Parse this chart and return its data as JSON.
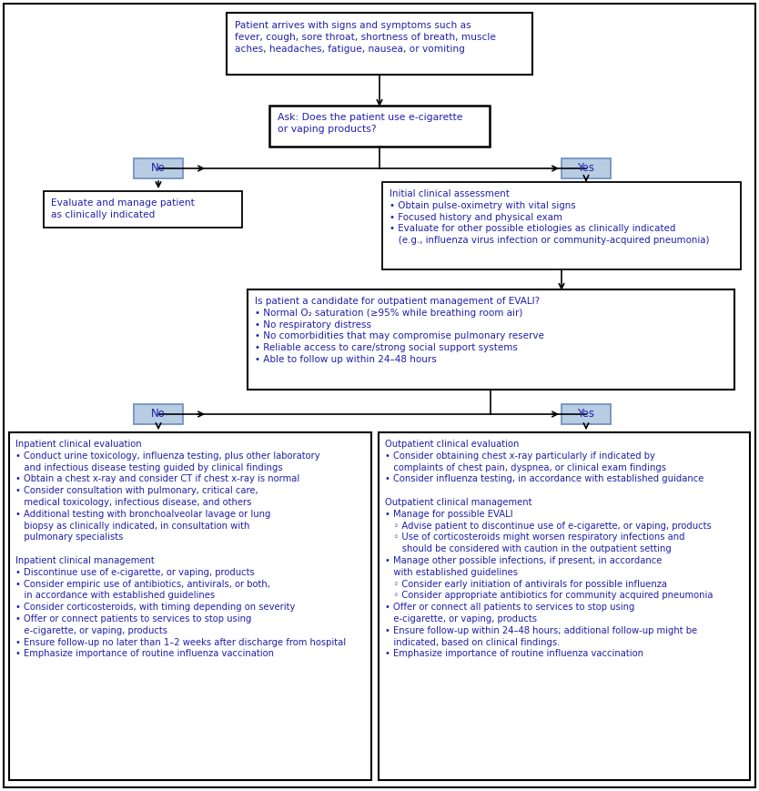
{
  "bg_color": "#ffffff",
  "text_color": "#2020aa",
  "box_border": "#000000",
  "yes_no_fill": "#b8cce4",
  "yes_no_border": "#7094c0",
  "box1_text": "Patient arrives with signs and symptoms such as\nfever, cough, sore throat, shortness of breath, muscle\naches, headaches, fatigue, nausea, or vomiting",
  "box2_text": "Ask: Does the patient use e-cigarette\nor vaping products?",
  "box_left1_text": "Evaluate and manage patient\nas clinically indicated",
  "box_right1_text": "Initial clinical assessment\n• Obtain pulse-oximetry with vital signs\n• Focused history and physical exam\n• Evaluate for other possible etiologies as clinically indicated\n   (e.g., influenza virus infection or community-acquired pneumonia)",
  "box3_text": "Is patient a candidate for outpatient management of EVALI?\n• Normal O₂ saturation (≥95% while breathing room air)\n• No respiratory distress\n• No comorbidities that may compromise pulmonary reserve\n• Reliable access to care/strong social support systems\n• Able to follow up within 24–48 hours",
  "box_inpatient_text": "Inpatient clinical evaluation\n• Conduct urine toxicology, influenza testing, plus other laboratory\n   and infectious disease testing guided by clinical findings\n• Obtain a chest x-ray and consider CT if chest x-ray is normal\n• Consider consultation with pulmonary, critical care,\n   medical toxicology, infectious disease, and others\n• Additional testing with bronchoalveolar lavage or lung\n   biopsy as clinically indicated, in consultation with\n   pulmonary specialists\n\nInpatient clinical management\n• Discontinue use of e-cigarette, or vaping, products\n• Consider empiric use of antibiotics, antivirals, or both,\n   in accordance with established guidelines\n• Consider corticosteroids, with timing depending on severity\n• Offer or connect patients to services to stop using\n   e-cigarette, or vaping, products\n• Ensure follow-up no later than 1–2 weeks after discharge from hospital\n• Emphasize importance of routine influenza vaccination",
  "box_outpatient_text": "Outpatient clinical evaluation\n• Consider obtaining chest x-ray particularly if indicated by\n   complaints of chest pain, dyspnea, or clinical exam findings\n• Consider influenza testing, in accordance with established guidance\n\nOutpatient clinical management\n• Manage for possible EVALI\n   ◦ Advise patient to discontinue use of e-cigarette, or vaping, products\n   ◦ Use of corticosteroids might worsen respiratory infections and\n      should be considered with caution in the outpatient setting\n• Manage other possible infections, if present, in accordance\n   with established guidelines\n   ◦ Consider early initiation of antivirals for possible influenza\n   ◦ Consider appropriate antibiotics for community acquired pneumonia\n• Offer or connect all patients to services to stop using\n   e-cigarette, or vaping, products\n• Ensure follow-up within 24–48 hours; additional follow-up might be\n   indicated, based on clinical findings.\n• Emphasize importance of routine influenza vaccination"
}
